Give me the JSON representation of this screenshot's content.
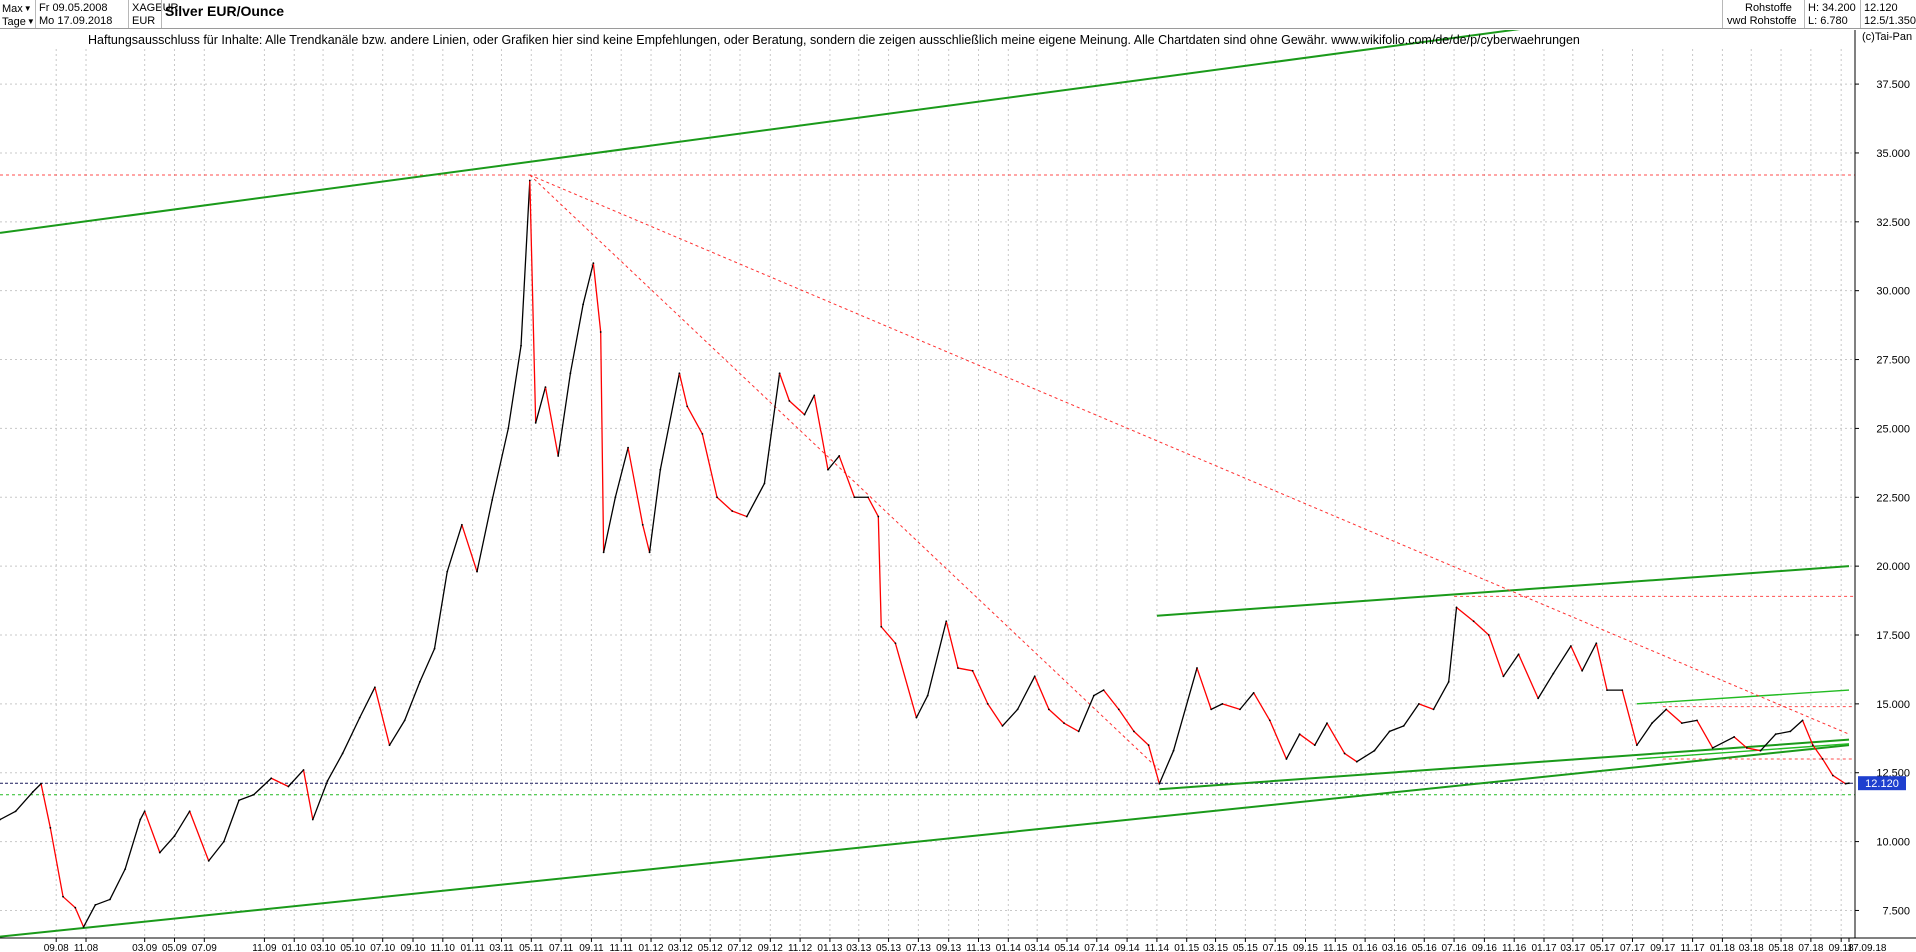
{
  "header": {
    "period": {
      "label": "Max",
      "options": [
        "Max"
      ]
    },
    "interval": {
      "label": "Tage",
      "options": [
        "Tage"
      ]
    },
    "date_from": "Fr 09.05.2008",
    "date_to": "Mo 17.09.2018",
    "symbol": "XAGEUR",
    "currency": "EUR",
    "title": "Silver EUR/Ounce",
    "market": "Rohstoffe",
    "source": "vwd Rohstoffe",
    "high": "H: 34.200",
    "low": "L: 6.780",
    "last": "12.120",
    "scale": "12.5/1.350"
  },
  "disclaimer": "Haftungsausschluss für Inhalte: Alle Trendkanäle bzw. andere Linien, oder Grafiken hier sind keine Empfehlungen, oder Beratung, sondern die zeigen ausschließlich meine eigene Meinung. Alle Chartdaten sind ohne Gewähr.  www.wikifolio.com/de/de/p/cyberwaehrungen",
  "copyright": "(c)Tai-Pan",
  "colors": {
    "up": "#000000",
    "down": "#ff0000",
    "trend": "#1a9a1a",
    "trend_light": "#22bb22",
    "resistance": "#ff3030",
    "price_badge": "#1f3fcf"
  },
  "chart_data": {
    "type": "line",
    "title": "Silver EUR/Ounce",
    "xlabel": "",
    "ylabel": "",
    "ylim": [
      6.5,
      39.5
    ],
    "xlim": [
      "2008-05-09",
      "2018-09-17"
    ],
    "grid": true,
    "y_ticks": [
      "7.500",
      "10.000",
      "12.500",
      "15.000",
      "17.500",
      "20.000",
      "22.500",
      "25.000",
      "27.500",
      "30.000",
      "32.500",
      "35.000",
      "37.500"
    ],
    "x_ticks": [
      {
        "label": "09.08",
        "d": "2008-09-01"
      },
      {
        "label": "11.08",
        "d": "2008-11-01"
      },
      {
        "label": "03.09",
        "d": "2009-03-01"
      },
      {
        "label": "05.09",
        "d": "2009-05-01"
      },
      {
        "label": "07.09",
        "d": "2009-07-01"
      },
      {
        "label": "11.09",
        "d": "2009-11-01"
      },
      {
        "label": "01.10",
        "d": "2010-01-01"
      },
      {
        "label": "03.10",
        "d": "2010-03-01"
      },
      {
        "label": "05.10",
        "d": "2010-05-01"
      },
      {
        "label": "07.10",
        "d": "2010-07-01"
      },
      {
        "label": "09.10",
        "d": "2010-09-01"
      },
      {
        "label": "11.10",
        "d": "2010-11-01"
      },
      {
        "label": "01.11",
        "d": "2011-01-01"
      },
      {
        "label": "03.11",
        "d": "2011-03-01"
      },
      {
        "label": "05.11",
        "d": "2011-05-01"
      },
      {
        "label": "07.11",
        "d": "2011-07-01"
      },
      {
        "label": "09.11",
        "d": "2011-09-01"
      },
      {
        "label": "11.11",
        "d": "2011-11-01"
      },
      {
        "label": "01.12",
        "d": "2012-01-01"
      },
      {
        "label": "03.12",
        "d": "2012-03-01"
      },
      {
        "label": "05.12",
        "d": "2012-05-01"
      },
      {
        "label": "07.12",
        "d": "2012-07-01"
      },
      {
        "label": "09.12",
        "d": "2012-09-01"
      },
      {
        "label": "11.12",
        "d": "2012-11-01"
      },
      {
        "label": "01.13",
        "d": "2013-01-01"
      },
      {
        "label": "03.13",
        "d": "2013-03-01"
      },
      {
        "label": "05.13",
        "d": "2013-05-01"
      },
      {
        "label": "07.13",
        "d": "2013-07-01"
      },
      {
        "label": "09.13",
        "d": "2013-09-01"
      },
      {
        "label": "11.13",
        "d": "2013-11-01"
      },
      {
        "label": "01.14",
        "d": "2014-01-01"
      },
      {
        "label": "03.14",
        "d": "2014-03-01"
      },
      {
        "label": "05.14",
        "d": "2014-05-01"
      },
      {
        "label": "07.14",
        "d": "2014-07-01"
      },
      {
        "label": "09.14",
        "d": "2014-09-01"
      },
      {
        "label": "11.14",
        "d": "2014-11-01"
      },
      {
        "label": "01.15",
        "d": "2015-01-01"
      },
      {
        "label": "03.15",
        "d": "2015-03-01"
      },
      {
        "label": "05.15",
        "d": "2015-05-01"
      },
      {
        "label": "07.15",
        "d": "2015-07-01"
      },
      {
        "label": "09.15",
        "d": "2015-09-01"
      },
      {
        "label": "11.15",
        "d": "2015-11-01"
      },
      {
        "label": "01.16",
        "d": "2016-01-01"
      },
      {
        "label": "03.16",
        "d": "2016-03-01"
      },
      {
        "label": "05.16",
        "d": "2016-05-01"
      },
      {
        "label": "07.16",
        "d": "2016-07-01"
      },
      {
        "label": "09.16",
        "d": "2016-09-01"
      },
      {
        "label": "11.16",
        "d": "2016-11-01"
      },
      {
        "label": "01.17",
        "d": "2017-01-01"
      },
      {
        "label": "03.17",
        "d": "2017-03-01"
      },
      {
        "label": "05.17",
        "d": "2017-05-01"
      },
      {
        "label": "07.17",
        "d": "2017-07-01"
      },
      {
        "label": "09.17",
        "d": "2017-09-01"
      },
      {
        "label": "11.17",
        "d": "2017-11-01"
      },
      {
        "label": "01.18",
        "d": "2018-01-01"
      },
      {
        "label": "03.18",
        "d": "2018-03-01"
      },
      {
        "label": "05.18",
        "d": "2018-05-01"
      },
      {
        "label": "07.18",
        "d": "2018-07-01"
      },
      {
        "label": "09.18",
        "d": "2018-09-01"
      },
      {
        "label": "17.09.18",
        "d": "2018-09-17",
        "last": true
      }
    ],
    "series": [
      {
        "type": "line",
        "points": [
          [
            "2008-05-09",
            10.8
          ],
          [
            "2008-06-10",
            11.1
          ],
          [
            "2008-07-15",
            11.8
          ],
          [
            "2008-08-01",
            12.1
          ],
          [
            "2008-08-20",
            10.5
          ],
          [
            "2008-09-15",
            8.0
          ],
          [
            "2008-10-10",
            7.6
          ],
          [
            "2008-10-27",
            6.9
          ],
          [
            "2008-11-20",
            7.7
          ],
          [
            "2008-12-20",
            7.9
          ],
          [
            "2009-01-20",
            9.0
          ],
          [
            "2009-02-20",
            10.8
          ],
          [
            "2009-03-01",
            11.1
          ],
          [
            "2009-04-01",
            9.6
          ],
          [
            "2009-05-01",
            10.2
          ],
          [
            "2009-06-01",
            11.1
          ],
          [
            "2009-07-10",
            9.3
          ],
          [
            "2009-08-10",
            10.0
          ],
          [
            "2009-09-10",
            11.5
          ],
          [
            "2009-10-10",
            11.7
          ],
          [
            "2009-11-15",
            12.3
          ],
          [
            "2009-12-20",
            12.0
          ],
          [
            "2010-01-20",
            12.6
          ],
          [
            "2010-02-08",
            10.8
          ],
          [
            "2010-03-10",
            12.2
          ],
          [
            "2010-04-10",
            13.2
          ],
          [
            "2010-05-15",
            14.5
          ],
          [
            "2010-06-15",
            15.6
          ],
          [
            "2010-07-15",
            13.5
          ],
          [
            "2010-08-15",
            14.4
          ],
          [
            "2010-09-15",
            15.8
          ],
          [
            "2010-10-15",
            17.0
          ],
          [
            "2010-11-10",
            19.8
          ],
          [
            "2010-12-10",
            21.5
          ],
          [
            "2011-01-10",
            19.8
          ],
          [
            "2011-02-10",
            22.4
          ],
          [
            "2011-03-15",
            25.0
          ],
          [
            "2011-04-10",
            28.0
          ],
          [
            "2011-04-28",
            34.0
          ],
          [
            "2011-05-10",
            25.2
          ],
          [
            "2011-05-30",
            26.5
          ],
          [
            "2011-06-25",
            24.0
          ],
          [
            "2011-07-20",
            27.0
          ],
          [
            "2011-08-15",
            29.5
          ],
          [
            "2011-09-05",
            31.0
          ],
          [
            "2011-09-20",
            28.5
          ],
          [
            "2011-09-26",
            20.5
          ],
          [
            "2011-10-20",
            22.5
          ],
          [
            "2011-11-15",
            24.3
          ],
          [
            "2011-12-15",
            21.5
          ],
          [
            "2011-12-29",
            20.5
          ],
          [
            "2012-01-20",
            23.5
          ],
          [
            "2012-02-28",
            27.0
          ],
          [
            "2012-03-15",
            25.8
          ],
          [
            "2012-04-15",
            24.8
          ],
          [
            "2012-05-15",
            22.5
          ],
          [
            "2012-06-15",
            22.0
          ],
          [
            "2012-07-15",
            21.8
          ],
          [
            "2012-08-20",
            23.0
          ],
          [
            "2012-09-20",
            27.0
          ],
          [
            "2012-10-10",
            26.0
          ],
          [
            "2012-11-10",
            25.5
          ],
          [
            "2012-11-30",
            26.2
          ],
          [
            "2012-12-28",
            23.5
          ],
          [
            "2013-01-20",
            24.0
          ],
          [
            "2013-02-20",
            22.5
          ],
          [
            "2013-03-20",
            22.5
          ],
          [
            "2013-04-10",
            21.8
          ],
          [
            "2013-04-16",
            17.8
          ],
          [
            "2013-05-15",
            17.2
          ],
          [
            "2013-06-27",
            14.5
          ],
          [
            "2013-07-20",
            15.3
          ],
          [
            "2013-08-27",
            18.0
          ],
          [
            "2013-09-20",
            16.3
          ],
          [
            "2013-10-20",
            16.2
          ],
          [
            "2013-11-20",
            15.0
          ],
          [
            "2013-12-20",
            14.2
          ],
          [
            "2014-01-20",
            14.8
          ],
          [
            "2014-02-24",
            16.0
          ],
          [
            "2014-03-25",
            14.8
          ],
          [
            "2014-04-25",
            14.3
          ],
          [
            "2014-05-25",
            14.0
          ],
          [
            "2014-06-25",
            15.3
          ],
          [
            "2014-07-15",
            15.5
          ],
          [
            "2014-08-15",
            14.8
          ],
          [
            "2014-09-15",
            14.0
          ],
          [
            "2014-10-15",
            13.5
          ],
          [
            "2014-11-06",
            12.1
          ],
          [
            "2014-12-05",
            13.3
          ],
          [
            "2015-01-22",
            16.3
          ],
          [
            "2015-02-20",
            14.8
          ],
          [
            "2015-03-15",
            15.0
          ],
          [
            "2015-04-20",
            14.8
          ],
          [
            "2015-05-18",
            15.4
          ],
          [
            "2015-06-20",
            14.4
          ],
          [
            "2015-07-24",
            13.0
          ],
          [
            "2015-08-20",
            13.9
          ],
          [
            "2015-09-20",
            13.5
          ],
          [
            "2015-10-15",
            14.3
          ],
          [
            "2015-11-20",
            13.2
          ],
          [
            "2015-12-15",
            12.9
          ],
          [
            "2016-01-20",
            13.3
          ],
          [
            "2016-02-20",
            14.0
          ],
          [
            "2016-03-20",
            14.2
          ],
          [
            "2016-04-20",
            15.0
          ],
          [
            "2016-05-20",
            14.8
          ],
          [
            "2016-06-20",
            15.8
          ],
          [
            "2016-07-06",
            18.5
          ],
          [
            "2016-08-10",
            18.0
          ],
          [
            "2016-09-10",
            17.5
          ],
          [
            "2016-10-10",
            16.0
          ],
          [
            "2016-11-10",
            16.8
          ],
          [
            "2016-12-20",
            15.2
          ],
          [
            "2017-01-20",
            16.1
          ],
          [
            "2017-02-25",
            17.1
          ],
          [
            "2017-03-20",
            16.2
          ],
          [
            "2017-04-18",
            17.2
          ],
          [
            "2017-05-10",
            15.5
          ],
          [
            "2017-06-10",
            15.5
          ],
          [
            "2017-07-10",
            13.5
          ],
          [
            "2017-08-10",
            14.3
          ],
          [
            "2017-09-08",
            14.8
          ],
          [
            "2017-10-10",
            14.3
          ],
          [
            "2017-11-10",
            14.4
          ],
          [
            "2017-12-12",
            13.4
          ],
          [
            "2018-01-25",
            13.8
          ],
          [
            "2018-02-20",
            13.4
          ],
          [
            "2018-03-20",
            13.3
          ],
          [
            "2018-04-20",
            13.9
          ],
          [
            "2018-05-20",
            14.0
          ],
          [
            "2018-06-14",
            14.4
          ],
          [
            "2018-07-05",
            13.5
          ],
          [
            "2018-07-25",
            13.0
          ],
          [
            "2018-08-15",
            12.4
          ],
          [
            "2018-09-10",
            12.1
          ],
          [
            "2018-09-17",
            12.12
          ]
        ]
      }
    ],
    "trendlines": [
      {
        "kind": "trend",
        "from": [
          "2008-05-09",
          32.1
        ],
        "to": [
          "2018-09-17",
          41.1
        ]
      },
      {
        "kind": "trend",
        "from": [
          "2008-05-09",
          6.55
        ],
        "to": [
          "2018-09-17",
          13.5
        ]
      },
      {
        "kind": "trend",
        "from": [
          "2014-11-06",
          11.9
        ],
        "to": [
          "2018-09-17",
          13.7
        ]
      },
      {
        "kind": "trend",
        "from": [
          "2014-11-01",
          18.2
        ],
        "to": [
          "2018-09-17",
          20.0
        ]
      },
      {
        "kind": "trend_light",
        "from": [
          "2017-07-10",
          15.0
        ],
        "to": [
          "2018-09-17",
          15.5
        ]
      },
      {
        "kind": "trend_light",
        "from": [
          "2017-07-10",
          13.0
        ],
        "to": [
          "2018-09-17",
          13.55
        ]
      },
      {
        "kind": "resistance_diag",
        "from": [
          "2011-04-28",
          34.2
        ],
        "to": [
          "2018-09-17",
          13.9
        ]
      },
      {
        "kind": "resistance_diag",
        "from": [
          "2011-04-28",
          34.2
        ],
        "to": [
          "2014-11-06",
          12.6
        ]
      }
    ],
    "levels": [
      {
        "kind": "resistance",
        "value": 34.2,
        "from": "2008-05-09"
      },
      {
        "kind": "resistance",
        "value": 18.9,
        "from": "2016-07-01"
      },
      {
        "kind": "resistance",
        "value": 14.9,
        "from": "2017-09-01"
      },
      {
        "kind": "resistance",
        "value": 13.0,
        "from": "2017-09-01"
      },
      {
        "kind": "support",
        "value": 11.7,
        "from": "2008-05-09"
      },
      {
        "kind": "last",
        "value": 12.12,
        "from": "2008-05-09"
      }
    ]
  }
}
